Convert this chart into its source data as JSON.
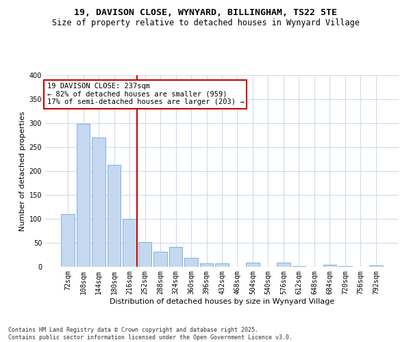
{
  "title_line1": "19, DAVISON CLOSE, WYNYARD, BILLINGHAM, TS22 5TE",
  "title_line2": "Size of property relative to detached houses in Wynyard Village",
  "xlabel": "Distribution of detached houses by size in Wynyard Village",
  "ylabel": "Number of detached properties",
  "categories": [
    "72sqm",
    "108sqm",
    "144sqm",
    "180sqm",
    "216sqm",
    "252sqm",
    "288sqm",
    "324sqm",
    "360sqm",
    "396sqm",
    "432sqm",
    "468sqm",
    "504sqm",
    "540sqm",
    "576sqm",
    "612sqm",
    "648sqm",
    "684sqm",
    "720sqm",
    "756sqm",
    "792sqm"
  ],
  "values": [
    110,
    298,
    270,
    213,
    100,
    52,
    32,
    41,
    18,
    7,
    7,
    0,
    8,
    0,
    8,
    2,
    0,
    5,
    2,
    0,
    3
  ],
  "bar_color": "#c5d8f0",
  "bar_edge_color": "#6fa8d6",
  "vline_x": 4.5,
  "vline_color": "#cc0000",
  "annotation_text": "19 DAVISON CLOSE: 237sqm\n← 82% of detached houses are smaller (959)\n17% of semi-detached houses are larger (203) →",
  "annotation_box_color": "#ffffff",
  "annotation_box_edge_color": "#cc0000",
  "ylim": [
    0,
    400
  ],
  "yticks": [
    0,
    50,
    100,
    150,
    200,
    250,
    300,
    350,
    400
  ],
  "footnote": "Contains HM Land Registry data © Crown copyright and database right 2025.\nContains public sector information licensed under the Open Government Licence v3.0.",
  "bg_color": "#ffffff",
  "grid_color": "#c8d8e8",
  "title_fontsize": 9.5,
  "subtitle_fontsize": 8.5,
  "axis_label_fontsize": 8,
  "tick_fontsize": 7,
  "annotation_fontsize": 7.5,
  "footnote_fontsize": 6
}
